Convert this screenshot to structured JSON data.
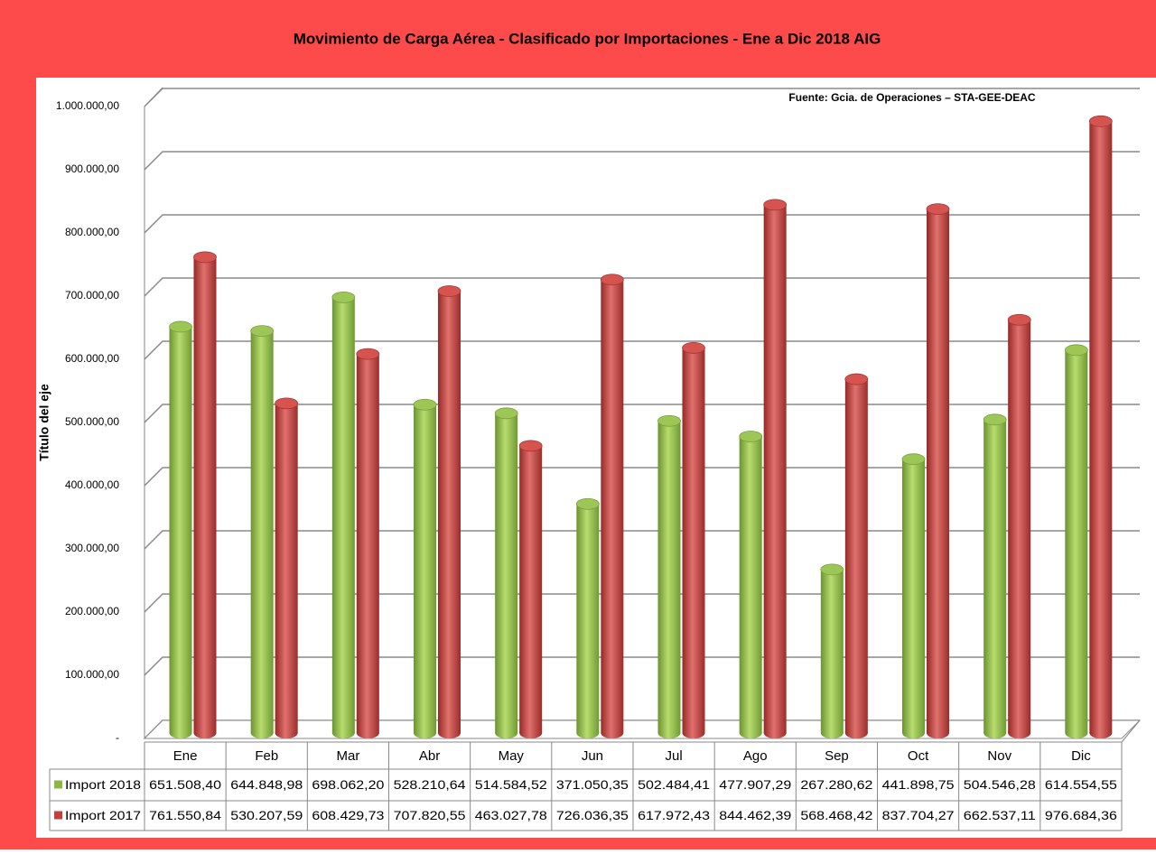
{
  "chart_data": {
    "type": "bar3d",
    "title": "Movimiento de Carga Aérea - Clasificado por Importaciones - Ene a Dic 2018 AIG",
    "source": "Fuente: Gcia. de Operaciones – STA-GEE-DEAC",
    "y_label": "Título del eje",
    "categories": [
      "Ene",
      "Feb",
      "Mar",
      "Abr",
      "May",
      "Jun",
      "Jul",
      "Ago",
      "Sep",
      "Oct",
      "Nov",
      "Dic"
    ],
    "series": [
      {
        "name": "Import 2018",
        "color": "#8db645",
        "values": [
          651508.4,
          644848.98,
          698062.2,
          528210.64,
          514584.52,
          371050.35,
          502484.41,
          477907.29,
          267280.62,
          441898.75,
          504546.28,
          614554.55
        ],
        "value_labels": [
          "651.508,40",
          "644.848,98",
          "698.062,20",
          "528.210,64",
          "514.584,52",
          "371.050,35",
          "502.484,41",
          "477.907,29",
          "267.280,62",
          "441.898,75",
          "504.546,28",
          "614.554,55"
        ]
      },
      {
        "name": "Import 2017",
        "color": "#c0403e",
        "values": [
          761550.84,
          530207.59,
          608429.73,
          707820.55,
          463027.78,
          726036.35,
          617972.43,
          844462.39,
          568468.42,
          837704.27,
          662537.11,
          976684.36
        ],
        "value_labels": [
          "761.550,84",
          "530.207,59",
          "608.429,73",
          "707.820,55",
          "463.027,78",
          "726.036,35",
          "617.972,43",
          "844.462,39",
          "568.468,42",
          "837.704,27",
          "662.537,11",
          "976.684,36"
        ]
      }
    ],
    "ylim": [
      0,
      1000000
    ],
    "yticks": [
      {
        "value": 0,
        "label": "-"
      },
      {
        "value": 100000,
        "label": "100.000,00"
      },
      {
        "value": 200000,
        "label": "200.000,00"
      },
      {
        "value": 300000,
        "label": "300.000,00"
      },
      {
        "value": 400000,
        "label": "400.000,00"
      },
      {
        "value": 500000,
        "label": "500.000,00"
      },
      {
        "value": 600000,
        "label": "600.000,00"
      },
      {
        "value": 700000,
        "label": "700.000,00"
      },
      {
        "value": 800000,
        "label": "800.000,00"
      },
      {
        "value": 900000,
        "label": "900.000,00"
      },
      {
        "value": 1000000,
        "label": "1.000.000,00"
      }
    ],
    "grid": true
  }
}
